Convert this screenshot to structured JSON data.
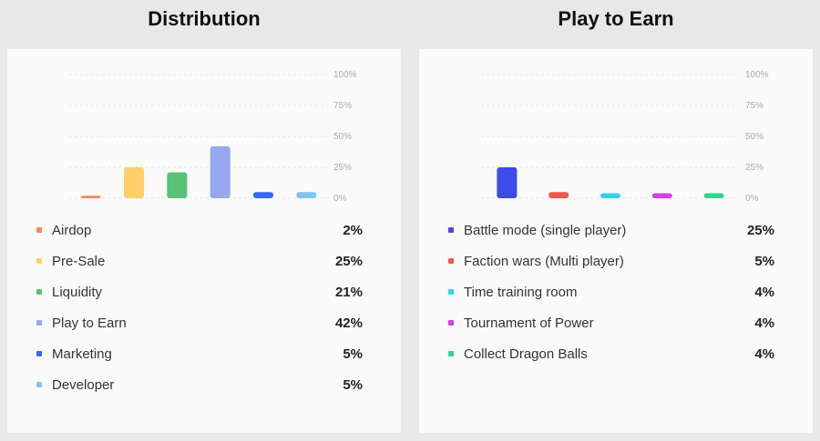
{
  "chart_data": [
    {
      "type": "bar",
      "title": "Distribution",
      "categories": [
        "Airdop",
        "Pre-Sale",
        "Liquidity",
        "Play to Earn",
        "Marketing",
        "Developer"
      ],
      "values": [
        2,
        25,
        21,
        42,
        5,
        5
      ],
      "value_labels": [
        "2%",
        "25%",
        "21%",
        "42%",
        "5%",
        "5%"
      ],
      "colors": [
        "#f28a5c",
        "#ffd067",
        "#59c178",
        "#98a8ef",
        "#3a67f0",
        "#7ec6f0"
      ],
      "yticks": [
        "100%",
        "75%",
        "50%",
        "25%",
        "0%"
      ],
      "ylim": [
        0,
        100
      ],
      "grid": true,
      "legend": "below"
    },
    {
      "type": "bar",
      "title": "Play to Earn",
      "categories": [
        "Battle mode (single player)",
        "Faction wars (Multi player)",
        "Time training room",
        "Tournament of Power",
        "Collect Dragon Balls"
      ],
      "values": [
        25,
        5,
        4,
        4,
        4
      ],
      "value_labels": [
        "25%",
        "5%",
        "4%",
        "4%",
        "4%"
      ],
      "colors": [
        "#3d4be8",
        "#f0574b",
        "#2fd3ee",
        "#d33ee6",
        "#29d98a"
      ],
      "yticks": [
        "100%",
        "75%",
        "50%",
        "25%",
        "0%"
      ],
      "ylim": [
        0,
        100
      ],
      "grid": true,
      "legend": "below"
    }
  ]
}
